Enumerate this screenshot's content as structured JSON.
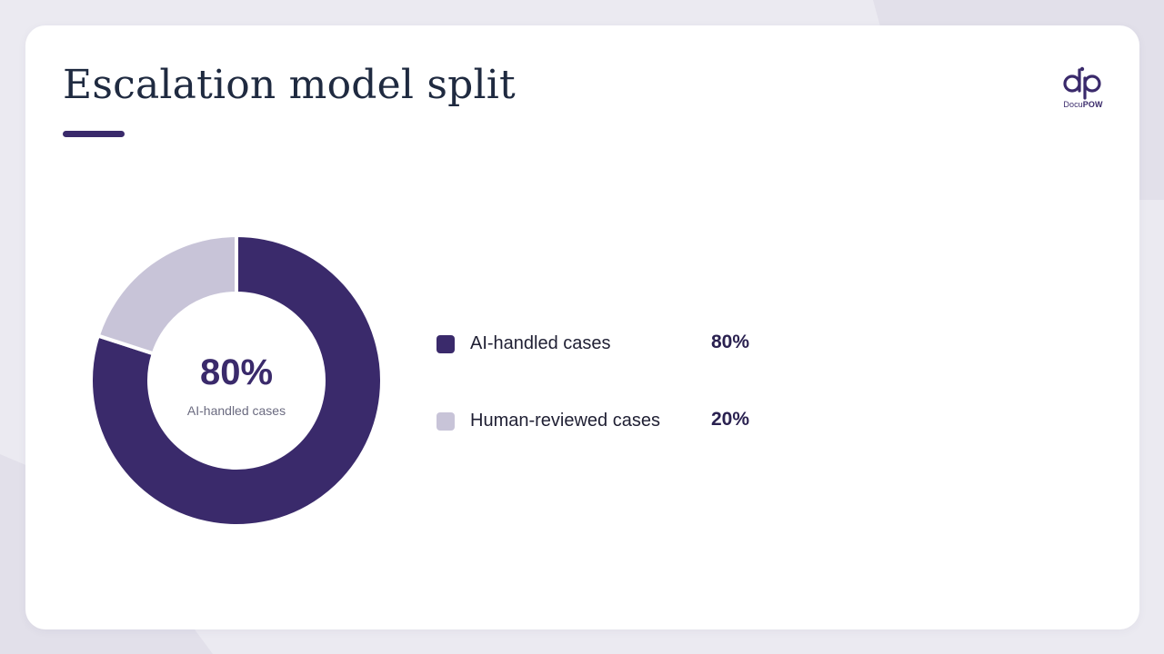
{
  "slide": {
    "title": "Escalation model split",
    "accent_color": "#3a2a6b"
  },
  "logo": {
    "icon": "docupow-logo-icon",
    "text_regular": "Docu",
    "text_bold": "POW"
  },
  "chart_data": {
    "type": "pie",
    "variant": "donut",
    "title": "Escalation model split",
    "center": {
      "value": "80%",
      "label": "AI-handled cases"
    },
    "legend_position": "right",
    "series": [
      {
        "name": "AI-handled cases",
        "value": 80,
        "value_label": "80%",
        "color": "#3a2a6b"
      },
      {
        "name": "Human-reviewed cases",
        "value": 20,
        "value_label": "20%",
        "color": "#c8c4d8"
      }
    ]
  }
}
